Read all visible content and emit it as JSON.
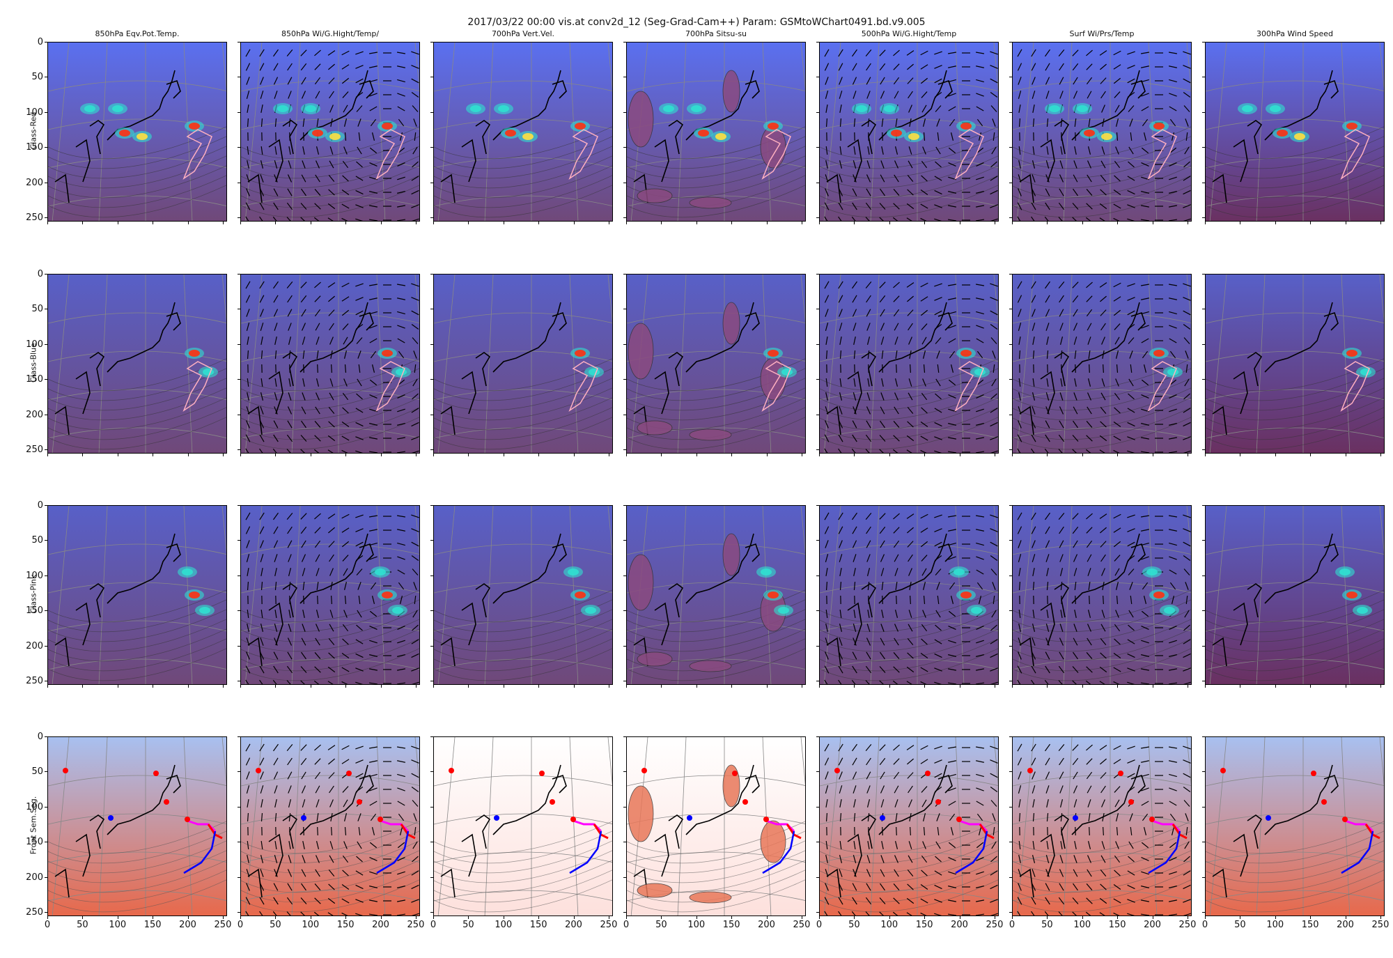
{
  "figure": {
    "title": "2017/03/22 00:00 vis.at conv2d_12 (Seg-Grad-Cam++) Param: GSMtoWChart0491.bd.v9.005"
  },
  "columns": [
    {
      "title": "850hPa Eqv.Pot.Temp."
    },
    {
      "title": "850hPa Wi/G.Hight/Temp/"
    },
    {
      "title": "700hPa Vert.Vel."
    },
    {
      "title": "700hPa Sitsu-su"
    },
    {
      "title": "500hPa Wi/G.Hight/Temp"
    },
    {
      "title": "Surf Wi/Prs/Temp"
    },
    {
      "title": "300hPa Wind Speed"
    }
  ],
  "rows": [
    {
      "label": "Class-Red",
      "style": "cam-red"
    },
    {
      "label": "Class-Blue",
      "style": "cam-blue"
    },
    {
      "label": "Class-Pink",
      "style": "cam-pink"
    },
    {
      "label": "Front Sem.Seg.",
      "style": "seg"
    }
  ],
  "axes": {
    "yticks": [
      "0",
      "50",
      "100",
      "150",
      "200",
      "250"
    ],
    "xticks": [
      "0",
      "50",
      "100",
      "150",
      "200",
      "250"
    ],
    "range": [
      0,
      256
    ]
  },
  "colors": {
    "cam_base": "#5e63d8",
    "cam_hot": "#ff3010",
    "cam_warm": "#ffe040",
    "cam_cool": "#30e0d0",
    "seg_warm": "#e8684a",
    "seg_cold": "#a8c0f0",
    "front_red": "#ff0000",
    "front_blue": "#0000ff",
    "front_pink": "#ff00ff",
    "contour_pink": "#ffb0c0"
  }
}
